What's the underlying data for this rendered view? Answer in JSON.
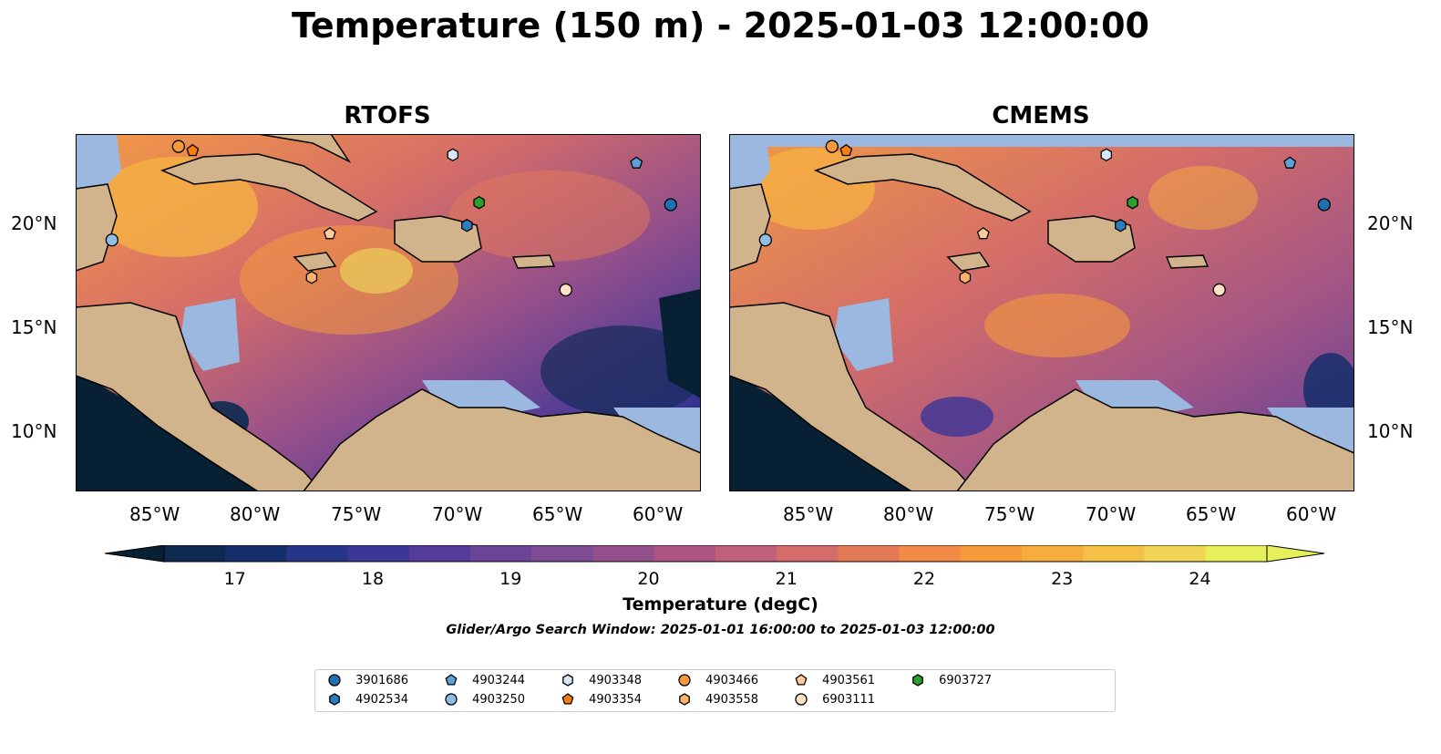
{
  "title": "Temperature (150 m) - 2025-01-03 12:00:00",
  "panels": [
    {
      "title": "RTOFS"
    },
    {
      "title": "CMEMS"
    }
  ],
  "axes": {
    "lat_labels": [
      "20°N",
      "15°N",
      "10°N"
    ],
    "lon_labels": [
      "85°W",
      "80°W",
      "75°W",
      "70°W",
      "65°W",
      "60°W"
    ]
  },
  "colorbar": {
    "label": "Temperature (degC)",
    "ticks": [
      "17",
      "18",
      "19",
      "20",
      "21",
      "22",
      "23",
      "24"
    ],
    "min": 16.5,
    "max": 24.5,
    "colors": [
      "#072033",
      "#0c2a50",
      "#142f6b",
      "#263588",
      "#3c3697",
      "#563c9a",
      "#6c4497",
      "#7e4c92",
      "#934f8b",
      "#ab5580",
      "#c0607a",
      "#d46d69",
      "#e57a57",
      "#f38a47",
      "#f79b3a",
      "#f7ad3c",
      "#f4c046",
      "#f1d553",
      "#e6f05b"
    ],
    "colormap": "thermal"
  },
  "search_window": "Glider/Argo Search Window: 2025-01-01 16:00:00 to 2025-01-03 12:00:00",
  "legend": [
    {
      "id": "3901686",
      "marker": "circle",
      "color": "#1f6fb2"
    },
    {
      "id": "4902534",
      "marker": "hexagon",
      "color": "#2e7cc0"
    },
    {
      "id": "4903244",
      "marker": "pentagon",
      "color": "#5fa0d8"
    },
    {
      "id": "4903250",
      "marker": "circle",
      "color": "#8fbde6"
    },
    {
      "id": "4903348",
      "marker": "hexagon",
      "color": "#d6e8f7"
    },
    {
      "id": "4903354",
      "marker": "pentagon",
      "color": "#f47f10"
    },
    {
      "id": "4903466",
      "marker": "circle",
      "color": "#f59a3c"
    },
    {
      "id": "4903558",
      "marker": "hexagon",
      "color": "#fbb36a"
    },
    {
      "id": "4903561",
      "marker": "pentagon",
      "color": "#fccb97"
    },
    {
      "id": "6903111",
      "marker": "circle",
      "color": "#fde2c8"
    },
    {
      "id": "6903727",
      "marker": "hexagon",
      "color": "#2ca02c"
    }
  ],
  "platform_positions": [
    {
      "id": "4903466",
      "lon": -83.9,
      "lat": 23.6
    },
    {
      "id": "4903354",
      "lon": -83.2,
      "lat": 23.4
    },
    {
      "id": "4903348",
      "lon": -70.3,
      "lat": 23.2
    },
    {
      "id": "4903244",
      "lon": -61.2,
      "lat": 22.8
    },
    {
      "id": "3901686",
      "lon": -59.5,
      "lat": 20.8
    },
    {
      "id": "6903727",
      "lon": -69.0,
      "lat": 20.9
    },
    {
      "id": "4902534",
      "lon": -69.6,
      "lat": 19.8
    },
    {
      "id": "4903250",
      "lon": -87.2,
      "lat": 19.1
    },
    {
      "id": "4903561",
      "lon": -76.4,
      "lat": 19.4
    },
    {
      "id": "4903558",
      "lon": -77.3,
      "lat": 17.3
    },
    {
      "id": "6903111",
      "lon": -64.7,
      "lat": 16.7
    }
  ],
  "colors": {
    "land": "#d2b48c",
    "shallow_water": "#9ab8e0",
    "deep_cold": "#072033"
  }
}
